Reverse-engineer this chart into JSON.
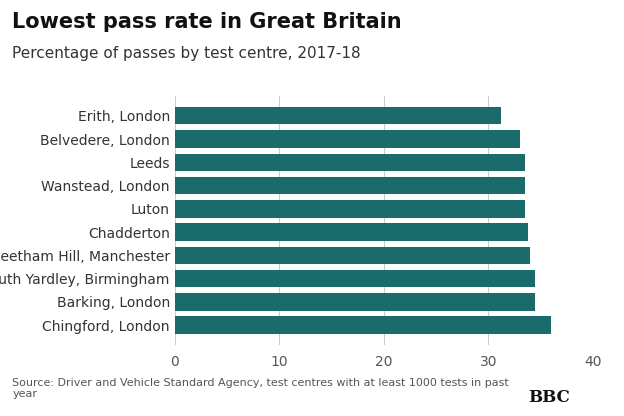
{
  "title": "Lowest pass rate in Great Britain",
  "subtitle": "Percentage of passes by test centre, 2017-18",
  "categories": [
    "Chingford, London",
    "Barking, London",
    "South Yardley, Birmingham",
    "Cheetham Hill, Manchester",
    "Chadderton",
    "Luton",
    "Wanstead, London",
    "Leeds",
    "Belvedere, London",
    "Erith, London"
  ],
  "values": [
    36.0,
    34.5,
    34.5,
    34.0,
    33.8,
    33.5,
    33.5,
    33.5,
    33.0,
    31.2
  ],
  "bar_color": "#1a6b6b",
  "xlim": [
    0,
    40
  ],
  "xticks": [
    0,
    10,
    20,
    30,
    40
  ],
  "source_text": "Source: Driver and Vehicle Standard Agency, test centres with at least 1000 tests in past\nyear",
  "background_color": "#ffffff",
  "title_fontsize": 15,
  "subtitle_fontsize": 11,
  "tick_fontsize": 10,
  "label_fontsize": 10,
  "source_fontsize": 8,
  "bar_gap": 0.15
}
